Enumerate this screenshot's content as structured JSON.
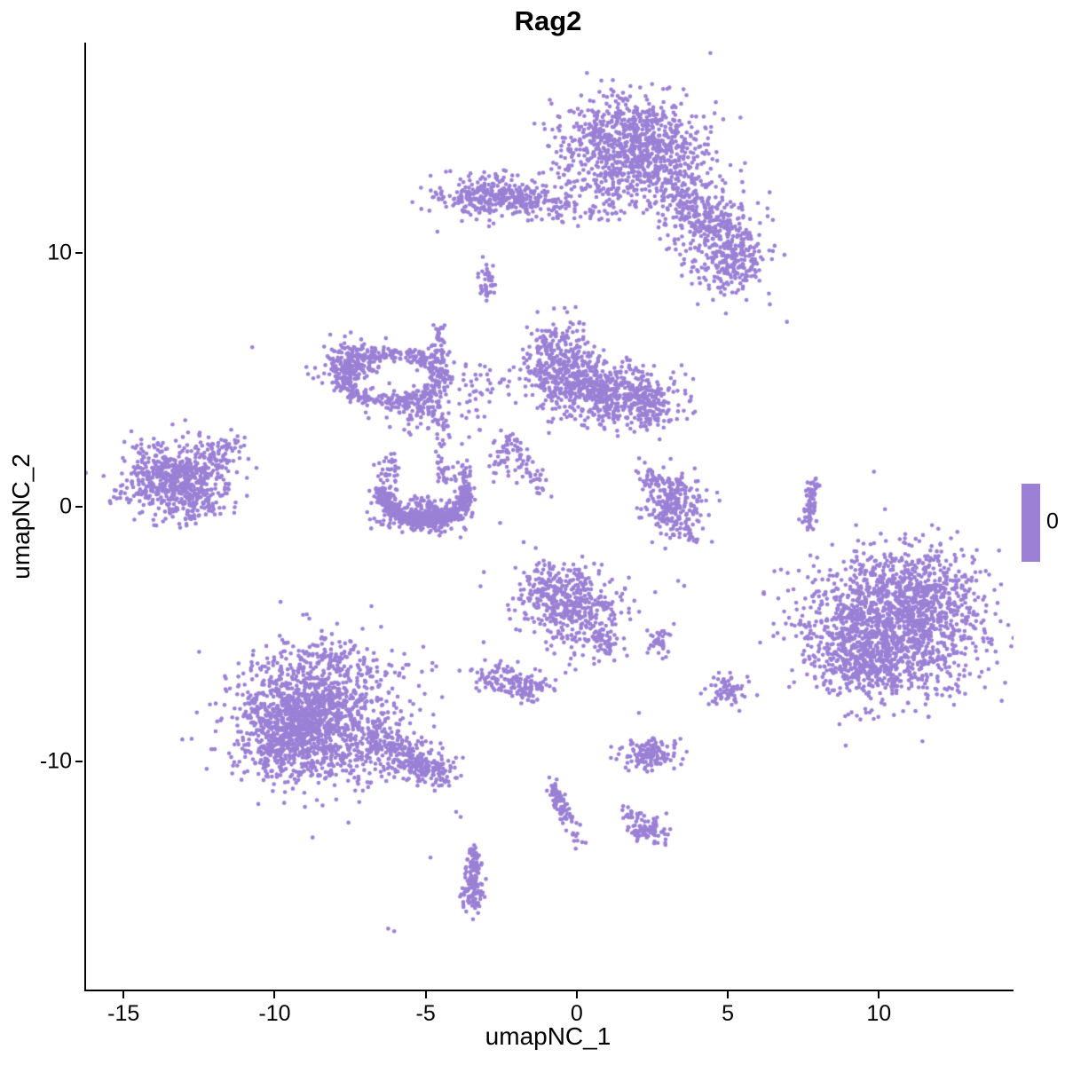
{
  "chart_data": {
    "type": "scatter",
    "title": "Rag2",
    "xlabel": "umapNC_1",
    "ylabel": "umapNC_2",
    "xlim": [
      -16.3,
      14.4
    ],
    "ylim": [
      -19.0,
      18.3
    ],
    "xticks": [
      -15,
      -10,
      -5,
      0,
      5,
      10
    ],
    "yticks": [
      -10,
      0,
      10
    ],
    "grid": false,
    "background": "#FFFFFF",
    "axis_color": "#000000",
    "point_color": "#9B80D5",
    "point_radius": 2.3,
    "legend": {
      "position": "right",
      "tick_label": "0",
      "bar_color": "#9B80D5"
    },
    "clusters": [
      {
        "type": "gauss",
        "cx": 1.8,
        "cy": 14.3,
        "sx": 1.15,
        "sy": 0.9,
        "n": 850
      },
      {
        "type": "gauss",
        "cx": 2.1,
        "cy": 13.0,
        "sx": 1.4,
        "sy": 0.6,
        "n": 150
      },
      {
        "type": "line",
        "x0": 3.0,
        "y0": 12.6,
        "x1": 4.6,
        "y1": 11.0,
        "s": 0.45,
        "n": 150
      },
      {
        "type": "gauss",
        "cx": 4.9,
        "cy": 10.1,
        "sx": 0.75,
        "sy": 0.85,
        "n": 260
      },
      {
        "type": "gauss",
        "cx": 3.9,
        "cy": 11.6,
        "sx": 0.9,
        "sy": 0.7,
        "n": 90
      },
      {
        "type": "line",
        "x0": 1.0,
        "y0": 12.8,
        "x1": 1.1,
        "y1": 11.4,
        "s": 0.25,
        "n": 40
      },
      {
        "type": "gauss",
        "cx": 5.3,
        "cy": 9.6,
        "sx": 0.45,
        "sy": 0.5,
        "n": 80
      },
      {
        "type": "gauss",
        "cx": -2.7,
        "cy": 12.2,
        "sx": 1.05,
        "sy": 0.42,
        "n": 330
      },
      {
        "type": "gauss",
        "cx": -1.3,
        "cy": 11.8,
        "sx": 0.6,
        "sy": 0.35,
        "n": 60
      },
      {
        "type": "line",
        "x0": -0.6,
        "y0": 11.7,
        "x1": 0.6,
        "y1": 11.5,
        "s": 0.25,
        "n": 25
      },
      {
        "type": "gauss",
        "cx": -3.0,
        "cy": 8.9,
        "sx": 0.14,
        "sy": 0.38,
        "n": 45
      },
      {
        "type": "arc",
        "cx": -6.2,
        "cy": 5.1,
        "rx": 1.6,
        "ry": 0.95,
        "a0": -30,
        "a1": 330,
        "jit": 0.28,
        "n": 420
      },
      {
        "type": "gauss",
        "cx": -7.4,
        "cy": 5.6,
        "sx": 0.5,
        "sy": 0.45,
        "n": 160
      },
      {
        "type": "line",
        "x0": -4.9,
        "y0": 4.3,
        "x1": -4.4,
        "y1": 2.6,
        "s": 0.2,
        "n": 50
      },
      {
        "type": "line",
        "x0": -4.6,
        "y0": 7.2,
        "x1": -4.7,
        "y1": 5.6,
        "s": 0.18,
        "n": 45
      },
      {
        "type": "gauss",
        "cx": -5.6,
        "cy": 3.9,
        "sx": 0.5,
        "sy": 0.4,
        "n": 70
      },
      {
        "type": "gauss",
        "cx": -3.4,
        "cy": 4.3,
        "sx": 0.45,
        "sy": 0.6,
        "n": 45
      },
      {
        "type": "line",
        "x0": -4.6,
        "y0": 2.2,
        "x1": -4.4,
        "y1": 0.9,
        "s": 0.15,
        "n": 25
      },
      {
        "type": "gauss",
        "cx": -0.7,
        "cy": 5.5,
        "sx": 0.6,
        "sy": 0.9,
        "n": 380
      },
      {
        "type": "gauss",
        "cx": 1.4,
        "cy": 4.4,
        "sx": 0.95,
        "sy": 0.6,
        "n": 380
      },
      {
        "type": "gauss",
        "cx": 0.3,
        "cy": 4.9,
        "sx": 0.5,
        "sy": 0.5,
        "n": 120
      },
      {
        "type": "gauss",
        "cx": 2.3,
        "cy": 4.0,
        "sx": 0.4,
        "sy": 0.5,
        "n": 90
      },
      {
        "type": "line",
        "x0": -2.3,
        "y0": 2.8,
        "x1": -1.3,
        "y1": 0.7,
        "s": 0.22,
        "n": 70
      },
      {
        "type": "gauss",
        "cx": -2.6,
        "cy": 1.8,
        "sx": 0.25,
        "sy": 0.4,
        "n": 25
      },
      {
        "type": "gauss",
        "cx": -13.4,
        "cy": 1.1,
        "sx": 0.85,
        "sy": 0.7,
        "n": 600
      },
      {
        "type": "line",
        "x0": -12.4,
        "y0": 1.8,
        "x1": -11.4,
        "y1": 2.6,
        "s": 0.25,
        "n": 60
      },
      {
        "type": "gauss",
        "cx": -12.6,
        "cy": 0.0,
        "sx": 0.5,
        "sy": 0.3,
        "n": 60
      },
      {
        "type": "arc",
        "cx": -5.1,
        "cy": 0.9,
        "rx": 1.45,
        "ry": 1.5,
        "a0": 185,
        "a1": 355,
        "jit": 0.18,
        "n": 520
      },
      {
        "type": "gauss",
        "cx": -5.0,
        "cy": -0.3,
        "sx": 0.8,
        "sy": 0.35,
        "n": 220
      },
      {
        "type": "gauss",
        "cx": -6.3,
        "cy": 1.2,
        "sx": 0.2,
        "sy": 0.4,
        "n": 40
      },
      {
        "type": "gauss",
        "cx": -3.8,
        "cy": 1.2,
        "sx": 0.2,
        "sy": 0.4,
        "n": 40
      },
      {
        "type": "gauss",
        "cx": 3.2,
        "cy": 0.1,
        "sx": 0.5,
        "sy": 0.65,
        "n": 230
      },
      {
        "type": "line",
        "x0": 2.3,
        "y0": 1.4,
        "x1": 3.0,
        "y1": 0.6,
        "s": 0.25,
        "n": 40
      },
      {
        "type": "line",
        "x0": 3.5,
        "y0": -0.9,
        "x1": 3.9,
        "y1": -1.4,
        "s": 0.15,
        "n": 15
      },
      {
        "type": "line",
        "x0": 7.75,
        "y0": 1.0,
        "x1": 7.6,
        "y1": -0.9,
        "s": 0.1,
        "n": 70
      },
      {
        "type": "gauss",
        "cx": 10.4,
        "cy": -4.7,
        "sx": 1.45,
        "sy": 1.4,
        "n": 1500
      },
      {
        "type": "gauss",
        "cx": 9.2,
        "cy": -6.2,
        "sx": 0.7,
        "sy": 0.7,
        "n": 200
      },
      {
        "type": "gauss",
        "cx": 11.6,
        "cy": -3.2,
        "sx": 0.8,
        "sy": 0.7,
        "n": 150
      },
      {
        "type": "gauss",
        "cx": 10.8,
        "cy": -2.3,
        "sx": 1.0,
        "sy": 0.5,
        "n": 80
      },
      {
        "type": "gauss",
        "cx": -0.2,
        "cy": -3.8,
        "sx": 0.8,
        "sy": 0.8,
        "n": 420
      },
      {
        "type": "line",
        "x0": 0.6,
        "y0": -4.9,
        "x1": 1.0,
        "y1": -5.7,
        "s": 0.25,
        "n": 60
      },
      {
        "type": "gauss",
        "cx": -1.1,
        "cy": -3.0,
        "sx": 0.35,
        "sy": 0.4,
        "n": 60
      },
      {
        "type": "gauss",
        "cx": 2.7,
        "cy": -5.3,
        "sx": 0.18,
        "sy": 0.33,
        "n": 35
      },
      {
        "type": "gauss",
        "cx": -2.6,
        "cy": -6.8,
        "sx": 0.45,
        "sy": 0.35,
        "n": 90
      },
      {
        "type": "gauss",
        "cx": -1.5,
        "cy": -7.1,
        "sx": 0.35,
        "sy": 0.3,
        "n": 70
      },
      {
        "type": "gauss",
        "cx": 4.9,
        "cy": -7.2,
        "sx": 0.33,
        "sy": 0.28,
        "n": 70
      },
      {
        "type": "gauss",
        "cx": -8.7,
        "cy": -8.3,
        "sx": 1.35,
        "sy": 1.25,
        "n": 1350
      },
      {
        "type": "gauss",
        "cx": -9.3,
        "cy": -8.8,
        "sx": 0.6,
        "sy": 0.6,
        "n": 250
      },
      {
        "type": "line",
        "x0": -6.8,
        "y0": -9.2,
        "x1": -4.4,
        "y1": -10.6,
        "s": 0.38,
        "n": 300
      },
      {
        "type": "gauss",
        "cx": -8.0,
        "cy": -6.0,
        "sx": 0.8,
        "sy": 0.5,
        "n": 90
      },
      {
        "type": "gauss",
        "cx": -10.3,
        "cy": -9.6,
        "sx": 0.4,
        "sy": 0.5,
        "n": 80
      },
      {
        "type": "gauss",
        "cx": 2.4,
        "cy": -9.7,
        "sx": 0.5,
        "sy": 0.28,
        "n": 140
      },
      {
        "type": "line",
        "x0": -0.85,
        "y0": -10.9,
        "x1": -0.35,
        "y1": -12.3,
        "s": 0.14,
        "n": 80
      },
      {
        "type": "line",
        "x0": -0.2,
        "y0": -12.6,
        "x1": 0.1,
        "y1": -13.4,
        "s": 0.1,
        "n": 12
      },
      {
        "type": "gauss",
        "cx": 2.25,
        "cy": -12.7,
        "sx": 0.33,
        "sy": 0.27,
        "n": 90
      },
      {
        "type": "line",
        "x0": 1.4,
        "y0": -11.9,
        "x1": 1.9,
        "y1": -12.4,
        "s": 0.12,
        "n": 12
      },
      {
        "type": "line",
        "x0": -3.45,
        "y0": -13.3,
        "x1": -3.55,
        "y1": -15.0,
        "s": 0.12,
        "n": 80
      },
      {
        "type": "gauss",
        "cx": -3.5,
        "cy": -15.3,
        "sx": 0.22,
        "sy": 0.3,
        "n": 60
      },
      {
        "type": "points",
        "pts": [
          [
            6.9,
            7.3
          ],
          [
            -10.8,
            6.3
          ],
          [
            -4.05,
            -12.0
          ],
          [
            -3.9,
            -12.2
          ],
          [
            -6.3,
            -16.6
          ],
          [
            -6.1,
            -16.7
          ],
          [
            -4.9,
            -13.8
          ],
          [
            2.0,
            -8.1
          ],
          [
            -0.3,
            -6.2
          ],
          [
            -0.1,
            -6.4
          ],
          [
            3.3,
            -2.9
          ],
          [
            3.5,
            -3.1
          ]
        ]
      }
    ]
  }
}
